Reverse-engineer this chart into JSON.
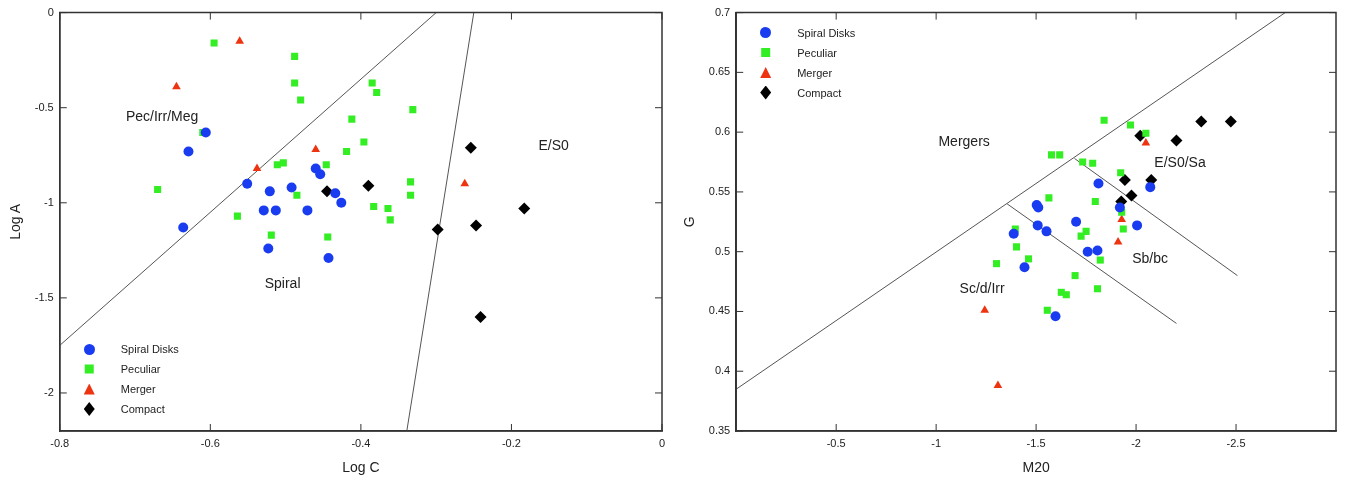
{
  "chart_data": [
    {
      "type": "scatter",
      "xlabel": "Log C",
      "ylabel": "Log A",
      "xlim": [
        -0.8,
        0
      ],
      "ylim": [
        -2.2,
        0
      ],
      "xticks": [
        -0.8,
        -0.6,
        -0.4,
        -0.2,
        0
      ],
      "yticks": [
        0,
        -0.5,
        -1,
        -1.5,
        -2
      ],
      "grid": false,
      "legend": "bottom left",
      "annotations": [
        "Pec/Irr/Meg",
        "Spiral",
        "E/S0"
      ],
      "series": [
        {
          "name": "Spiral Disks",
          "color": "#1a3cf0",
          "marker": "circle",
          "x": [
            -0.606,
            -0.629,
            -0.46,
            -0.454,
            -0.551,
            -0.521,
            -0.492,
            -0.434,
            -0.426,
            -0.529,
            -0.513,
            -0.471,
            -0.636,
            -0.523,
            -0.443
          ],
          "values": [
            -0.63,
            -0.73,
            -0.82,
            -0.85,
            -0.9,
            -0.94,
            -0.92,
            -0.95,
            -1.0,
            -1.04,
            -1.04,
            -1.04,
            -1.13,
            -1.24,
            -1.29
          ]
        },
        {
          "name": "Peculiar",
          "color": "#33ee22",
          "marker": "square",
          "x": [
            -0.595,
            -0.488,
            -0.488,
            -0.48,
            -0.412,
            -0.61,
            -0.419,
            -0.396,
            -0.511,
            -0.503,
            -0.446,
            -0.67,
            -0.485,
            -0.564,
            -0.519,
            -0.444,
            -0.385,
            -0.379,
            -0.331,
            -0.334,
            -0.334,
            -0.383,
            -0.364,
            -0.361
          ],
          "values": [
            -0.16,
            -0.23,
            -0.37,
            -0.46,
            -0.56,
            -0.63,
            -0.73,
            -0.68,
            -0.8,
            -0.79,
            -0.8,
            -0.93,
            -0.96,
            -1.07,
            -1.17,
            -1.18,
            -0.37,
            -0.42,
            -0.51,
            -0.89,
            -0.96,
            -1.02,
            -1.03,
            -1.09
          ]
        },
        {
          "name": "Merger",
          "color": "#ee3311",
          "marker": "triangle",
          "x": [
            -0.561,
            -0.645,
            -0.46,
            -0.538,
            -0.262
          ],
          "values": [
            -0.15,
            -0.39,
            -0.72,
            -0.82,
            -0.9
          ]
        },
        {
          "name": "Compact",
          "color": "#000000",
          "marker": "diamond",
          "x": [
            -0.445,
            -0.39,
            -0.254,
            -0.183,
            -0.298,
            -0.247,
            -0.241
          ],
          "values": [
            -0.94,
            -0.91,
            -0.71,
            -1.03,
            -1.14,
            -1.12,
            -1.6
          ]
        },
        {
          "type": "line",
          "color": "#555555",
          "marker": "none",
          "x": [
            -0.8,
            -0.3
          ],
          "values": [
            -1.75,
            0
          ]
        },
        {
          "type": "line",
          "color": "#555555",
          "marker": "none",
          "x": [
            -0.25,
            -0.339
          ],
          "values": [
            0,
            -2.2
          ]
        }
      ]
    },
    {
      "type": "scatter",
      "xlabel": "M20",
      "ylabel": "G",
      "xlim": [
        0,
        -3
      ],
      "ylim": [
        0.35,
        0.7
      ],
      "xticks": [
        -0.5,
        -1,
        -1.5,
        -2,
        -2.5
      ],
      "yticks": [
        0.35,
        0.4,
        0.45,
        0.5,
        0.55,
        0.6,
        0.65,
        0.7
      ],
      "grid": false,
      "legend": "top left",
      "annotations": [
        "Mergers",
        "Sc/d/Irr",
        "Sb/bc",
        "E/S0/Sa"
      ],
      "series": [
        {
          "name": "Spiral Disks",
          "color": "#1a3cf0",
          "marker": "circle",
          "x": [
            -1.388,
            -1.812,
            -2.071,
            -1.503,
            -1.511,
            -1.919,
            -1.7,
            -1.508,
            -1.552,
            -2.005,
            -1.758,
            -1.807,
            -1.442,
            -1.597
          ],
          "values": [
            0.515,
            0.557,
            0.554,
            0.539,
            0.537,
            0.537,
            0.525,
            0.522,
            0.517,
            0.522,
            0.5,
            0.501,
            0.487,
            0.446
          ]
        },
        {
          "name": "Peculiar",
          "color": "#33ee22",
          "marker": "square",
          "x": [
            -1.302,
            -1.396,
            -1.402,
            -1.84,
            -1.972,
            -2.049,
            -1.577,
            -1.618,
            -1.733,
            -1.783,
            -1.923,
            -1.564,
            -1.796,
            -1.928,
            -1.936,
            -1.725,
            -1.75,
            -1.462,
            -1.821,
            -1.695,
            -1.626,
            -1.651,
            -1.807,
            -1.556
          ],
          "values": [
            0.49,
            0.519,
            0.504,
            0.61,
            0.606,
            0.599,
            0.581,
            0.581,
            0.575,
            0.574,
            0.566,
            0.545,
            0.542,
            0.533,
            0.519,
            0.513,
            0.517,
            0.494,
            0.493,
            0.48,
            0.466,
            0.464,
            0.469,
            0.451
          ]
        },
        {
          "name": "Merger",
          "color": "#ee3311",
          "marker": "triangle",
          "x": [
            -1.243,
            -1.309,
            -2.049,
            -1.928,
            -1.91
          ],
          "values": [
            0.451,
            0.388,
            0.591,
            0.527,
            0.508
          ]
        },
        {
          "name": "Compact",
          "color": "#000000",
          "marker": "diamond",
          "x": [
            -2.021,
            -2.202,
            -2.326,
            -2.474,
            -1.944,
            -2.076,
            -1.977,
            -1.926
          ],
          "values": [
            0.597,
            0.593,
            0.609,
            0.609,
            0.56,
            0.56,
            0.547,
            0.542
          ]
        },
        {
          "type": "line",
          "color": "#555555",
          "marker": "none",
          "x": [
            0,
            -2.746
          ],
          "values": [
            0.385,
            0.7
          ]
        },
        {
          "type": "line",
          "color": "#555555",
          "marker": "none",
          "x": [
            -1.355,
            -2.202
          ],
          "values": [
            0.54,
            0.44
          ]
        },
        {
          "type": "line",
          "color": "#555555",
          "marker": "none",
          "x": [
            -1.692,
            -2.507
          ],
          "values": [
            0.578,
            0.48
          ]
        }
      ]
    }
  ]
}
